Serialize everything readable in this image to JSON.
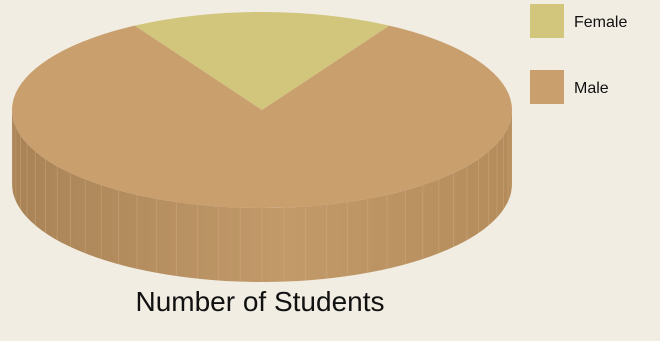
{
  "chart_data": {
    "type": "pie",
    "title": "Number of Students",
    "slices": [
      {
        "label": "Female",
        "value": 17,
        "color": "#d2c67c"
      },
      {
        "label": "Male",
        "value": 83,
        "color": "#c99f6e"
      }
    ],
    "legend": "right",
    "style": "3d"
  }
}
